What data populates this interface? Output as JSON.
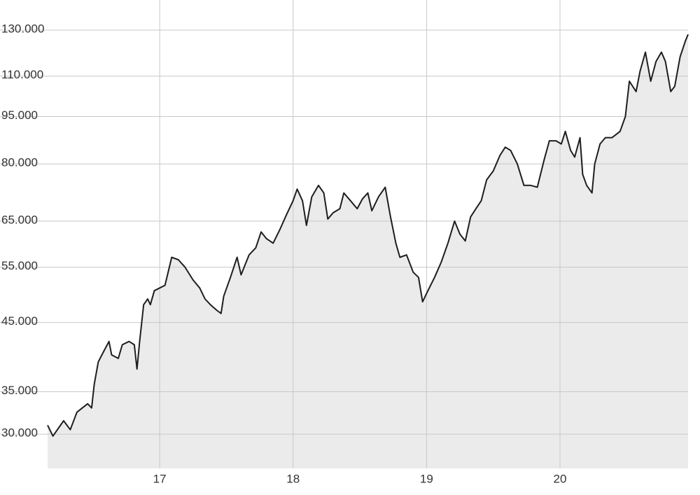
{
  "chart_data": {
    "type": "area",
    "log_y": true,
    "grid": true,
    "line_color": "#1e1e1e",
    "fill_color": "#ebebeb",
    "xlim": [
      16.16,
      20.96
    ],
    "xticks": [
      17,
      18,
      19,
      20
    ],
    "ylim": [
      26500,
      145000
    ],
    "yticks": [
      {
        "value": 30000,
        "label": "30.000"
      },
      {
        "value": 35000,
        "label": "35.000"
      },
      {
        "value": 45000,
        "label": "45.000"
      },
      {
        "value": 55000,
        "label": "55.000"
      },
      {
        "value": 65000,
        "label": "65.000"
      },
      {
        "value": 80000,
        "label": "80.000"
      },
      {
        "value": 95000,
        "label": "95.000"
      },
      {
        "value": 110000,
        "label": "110.000"
      },
      {
        "value": 130000,
        "label": "130.000"
      }
    ],
    "x": [
      16.16,
      16.2,
      16.28,
      16.33,
      16.38,
      16.46,
      16.49,
      16.51,
      16.54,
      16.58,
      16.62,
      16.64,
      16.69,
      16.72,
      16.77,
      16.81,
      16.83,
      16.85,
      16.88,
      16.91,
      16.93,
      16.96,
      17.0,
      17.04,
      17.09,
      17.14,
      17.19,
      17.25,
      17.3,
      17.34,
      17.38,
      17.43,
      17.46,
      17.48,
      17.53,
      17.58,
      17.61,
      17.67,
      17.72,
      17.76,
      17.8,
      17.85,
      17.9,
      17.95,
      18.0,
      18.03,
      18.07,
      18.1,
      18.14,
      18.19,
      18.23,
      18.26,
      18.3,
      18.35,
      18.38,
      18.43,
      18.48,
      18.52,
      18.56,
      18.59,
      18.64,
      18.69,
      18.73,
      18.77,
      18.8,
      18.85,
      18.9,
      18.94,
      18.97,
      19.01,
      19.06,
      19.11,
      19.16,
      19.21,
      19.25,
      19.29,
      19.33,
      19.37,
      19.41,
      19.45,
      19.5,
      19.55,
      19.59,
      19.63,
      19.68,
      19.73,
      19.78,
      19.83,
      19.88,
      19.92,
      19.97,
      20.01,
      20.04,
      20.08,
      20.11,
      20.15,
      20.17,
      20.2,
      20.24,
      20.26,
      20.3,
      20.34,
      20.39,
      20.45,
      20.49,
      20.52,
      20.57,
      20.6,
      20.64,
      20.68,
      20.72,
      20.76,
      20.79,
      20.83,
      20.86,
      20.9,
      20.94,
      20.96
    ],
    "values": [
      31000,
      29800,
      31500,
      30500,
      32500,
      33500,
      33000,
      36000,
      39000,
      40500,
      42000,
      40000,
      39500,
      41500,
      42000,
      41500,
      38000,
      42000,
      48000,
      49000,
      48000,
      50500,
      51000,
      51500,
      57000,
      56500,
      55000,
      52500,
      51000,
      49000,
      48000,
      47000,
      46500,
      49500,
      53000,
      57000,
      53500,
      57500,
      59000,
      62500,
      61000,
      60000,
      63000,
      66500,
      70000,
      73000,
      70000,
      64000,
      71000,
      74000,
      72000,
      65500,
      67000,
      68000,
      72000,
      70000,
      68000,
      70500,
      72000,
      67500,
      71000,
      73500,
      66000,
      60000,
      57000,
      57500,
      54000,
      53000,
      48500,
      50500,
      53000,
      56000,
      60000,
      65000,
      62000,
      60500,
      66000,
      68000,
      70000,
      75500,
      78000,
      82500,
      85000,
      84000,
      80000,
      74000,
      74000,
      73500,
      81000,
      87000,
      87000,
      86000,
      90000,
      84000,
      82000,
      88000,
      77000,
      74000,
      72000,
      80000,
      86000,
      88000,
      88000,
      90000,
      95000,
      108000,
      104000,
      112000,
      120000,
      108000,
      116000,
      120000,
      116000,
      104000,
      106000,
      118000,
      125000,
      128000
    ]
  }
}
